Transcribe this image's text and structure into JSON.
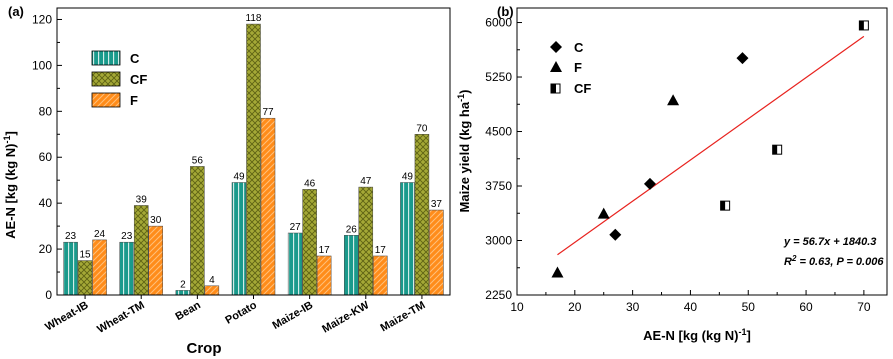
{
  "chart_data": [
    {
      "type": "bar",
      "panel_label": "(a)",
      "xlabel": "Crop",
      "ylabel_main": "AE-N [kg (kg N)",
      "ylabel_sup": "-1",
      "ylabel_end": "]",
      "ylim": [
        0,
        120
      ],
      "yticks": [
        0,
        20,
        40,
        60,
        80,
        100,
        120
      ],
      "categories": [
        "Wheat-IB",
        "Wheat-TM",
        "Bean",
        "Potato",
        "Maize-IB",
        "Maize-KW",
        "Maize-TM"
      ],
      "series": [
        {
          "name": "C",
          "color": "#1a9a8c",
          "pattern": "vertical-stripes",
          "values": [
            23,
            23,
            2,
            49,
            27,
            26,
            49
          ]
        },
        {
          "name": "CF",
          "color": "#9aa02a",
          "pattern": "crosshatch",
          "values": [
            15,
            39,
            56,
            118,
            46,
            47,
            70
          ]
        },
        {
          "name": "F",
          "color": "#ff8c1a",
          "pattern": "diagonal",
          "values": [
            24,
            30,
            4,
            77,
            17,
            17,
            37
          ]
        }
      ],
      "legend_position": "top-left",
      "grid": false
    },
    {
      "type": "scatter",
      "panel_label": "(b)",
      "xlabel_main": "AE-N [kg (kg N)",
      "xlabel_sup": "-1",
      "xlabel_end": "]",
      "ylabel_main": "Maize yield (kg ha",
      "ylabel_sup": "-1",
      "ylabel_end": ")",
      "xlim": [
        10,
        70
      ],
      "ylim": [
        2250,
        6000
      ],
      "xticks": [
        10,
        20,
        30,
        40,
        50,
        60,
        70
      ],
      "yticks": [
        2250,
        3000,
        3750,
        4500,
        5250,
        6000
      ],
      "series": [
        {
          "name": "C",
          "marker": "diamond",
          "points": [
            [
              27,
              3080
            ],
            [
              33,
              3780
            ],
            [
              49,
              5510
            ]
          ]
        },
        {
          "name": "F",
          "marker": "triangle",
          "points": [
            [
              17,
              2560
            ],
            [
              25,
              3370
            ],
            [
              37,
              4930
            ]
          ]
        },
        {
          "name": "CF",
          "marker": "half-square",
          "points": [
            [
              46,
              3480
            ],
            [
              55,
              4250
            ],
            [
              70,
              5960
            ]
          ]
        }
      ],
      "fit_line": {
        "color": "#e8231f",
        "x": [
          17,
          70
        ],
        "y": [
          2804,
          5809
        ]
      },
      "annotations": {
        "equation": "y = 56.7x + 1840.3",
        "r2_prefix": "R",
        "r2_sup": "2",
        "r2_rest": " = 0.63, P = 0.006",
        "color": "#1f2fd6"
      },
      "legend_position": "top-left",
      "grid": false
    }
  ]
}
